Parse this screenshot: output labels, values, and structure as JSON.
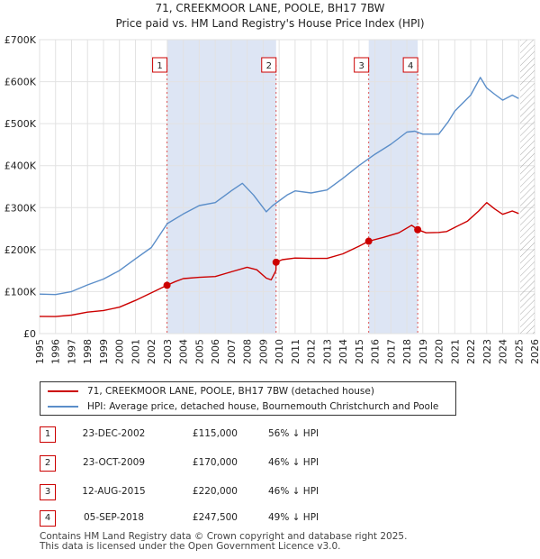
{
  "chart_data": {
    "type": "line",
    "title": "71, CREEKMOOR LANE, POOLE, BH17 7BW",
    "subtitle": "Price paid vs. HM Land Registry's House Price Index (HPI)",
    "xlim": [
      1995,
      2026
    ],
    "ylim": [
      0,
      700000
    ],
    "x_ticks": [
      1995,
      1996,
      1997,
      1998,
      1999,
      2000,
      2001,
      2002,
      2003,
      2004,
      2005,
      2006,
      2007,
      2008,
      2009,
      2010,
      2011,
      2012,
      2013,
      2014,
      2015,
      2016,
      2017,
      2018,
      2019,
      2020,
      2021,
      2022,
      2023,
      2024,
      2025,
      2026
    ],
    "y_ticks": [
      {
        "value": 0,
        "label": "£0"
      },
      {
        "value": 100000,
        "label": "£100K"
      },
      {
        "value": 200000,
        "label": "£200K"
      },
      {
        "value": 300000,
        "label": "£300K"
      },
      {
        "value": 400000,
        "label": "£400K"
      },
      {
        "value": 500000,
        "label": "£500K"
      },
      {
        "value": 600000,
        "label": "£600K"
      },
      {
        "value": 700000,
        "label": "£700K"
      }
    ],
    "hatch_from": 2025.1,
    "shaded_periods": [
      [
        2002.98,
        2009.81
      ],
      [
        2015.61,
        2018.68
      ]
    ],
    "series": [
      {
        "name": "71, CREEKMOOR LANE, POOLE, BH17 7BW (detached house)",
        "color": "#cc0000",
        "points": [
          [
            1995,
            41000
          ],
          [
            1996,
            40500
          ],
          [
            1997,
            44000
          ],
          [
            1998,
            51000
          ],
          [
            1999,
            55000
          ],
          [
            2000,
            63000
          ],
          [
            2001,
            79000
          ],
          [
            2002,
            97000
          ],
          [
            2002.98,
            115000
          ],
          [
            2003.5,
            124000
          ],
          [
            2004,
            131000
          ],
          [
            2005,
            134000
          ],
          [
            2006,
            136000
          ],
          [
            2007,
            147000
          ],
          [
            2008,
            158000
          ],
          [
            2008.6,
            152000
          ],
          [
            2009.2,
            132000
          ],
          [
            2009.5,
            128000
          ],
          [
            2009.8,
            150000
          ],
          [
            2009.81,
            170000
          ],
          [
            2010.2,
            176000
          ],
          [
            2011,
            180000
          ],
          [
            2012,
            179000
          ],
          [
            2013,
            179000
          ],
          [
            2014,
            190000
          ],
          [
            2015,
            208000
          ],
          [
            2015.61,
            220000
          ],
          [
            2016.5,
            229000
          ],
          [
            2017.5,
            240000
          ],
          [
            2018.3,
            258000
          ],
          [
            2018.68,
            247500
          ],
          [
            2019.2,
            240000
          ],
          [
            2020,
            241000
          ],
          [
            2020.5,
            243000
          ],
          [
            2021,
            253000
          ],
          [
            2021.8,
            268000
          ],
          [
            2022.5,
            292000
          ],
          [
            2023,
            312000
          ],
          [
            2023.5,
            297000
          ],
          [
            2024,
            284000
          ],
          [
            2024.6,
            292000
          ],
          [
            2025,
            286000
          ]
        ]
      },
      {
        "name": "HPI: Average price, detached house, Bournemouth Christchurch and Poole",
        "color": "#5b8ec9",
        "points": [
          [
            1995,
            94000
          ],
          [
            1996,
            93000
          ],
          [
            1997,
            100000
          ],
          [
            1998,
            116000
          ],
          [
            1999,
            130000
          ],
          [
            2000,
            150000
          ],
          [
            2001,
            178000
          ],
          [
            2002,
            205000
          ],
          [
            2003,
            262000
          ],
          [
            2004,
            285000
          ],
          [
            2005,
            305000
          ],
          [
            2006,
            312000
          ],
          [
            2007,
            340000
          ],
          [
            2007.7,
            358000
          ],
          [
            2008.4,
            330000
          ],
          [
            2009.2,
            290000
          ],
          [
            2009.6,
            305000
          ],
          [
            2010.5,
            330000
          ],
          [
            2011,
            340000
          ],
          [
            2012,
            335000
          ],
          [
            2013,
            342000
          ],
          [
            2014,
            370000
          ],
          [
            2015,
            400000
          ],
          [
            2016,
            427000
          ],
          [
            2017,
            451000
          ],
          [
            2018,
            480000
          ],
          [
            2018.5,
            482000
          ],
          [
            2019,
            475000
          ],
          [
            2020,
            475000
          ],
          [
            2020.6,
            505000
          ],
          [
            2021,
            530000
          ],
          [
            2022,
            568000
          ],
          [
            2022.6,
            610000
          ],
          [
            2023,
            585000
          ],
          [
            2023.5,
            570000
          ],
          [
            2024,
            556000
          ],
          [
            2024.6,
            568000
          ],
          [
            2025,
            560000
          ]
        ]
      }
    ],
    "sales": [
      {
        "id": "1",
        "year": 2002.98,
        "price": 115000,
        "date": "23-DEC-2002",
        "price_label": "£115,000",
        "hpi": "56% ↓ HPI"
      },
      {
        "id": "2",
        "year": 2009.81,
        "price": 170000,
        "date": "23-OCT-2009",
        "price_label": "£170,000",
        "hpi": "46% ↓ HPI"
      },
      {
        "id": "3",
        "year": 2015.61,
        "price": 220000,
        "date": "12-AUG-2015",
        "price_label": "£220,000",
        "hpi": "46% ↓ HPI"
      },
      {
        "id": "4",
        "year": 2018.68,
        "price": 247500,
        "date": "05-SEP-2018",
        "price_label": "£247,500",
        "hpi": "49% ↓ HPI"
      }
    ]
  },
  "legend": {
    "property_label": "71, CREEKMOOR LANE, POOLE, BH17 7BW (detached house)",
    "hpi_label": "HPI: Average price, detached house, Bournemouth Christchurch and Poole"
  },
  "footer": {
    "line1": "Contains HM Land Registry data © Crown copyright and database right 2025.",
    "line2": "This data is licensed under the Open Government Licence v3.0."
  }
}
